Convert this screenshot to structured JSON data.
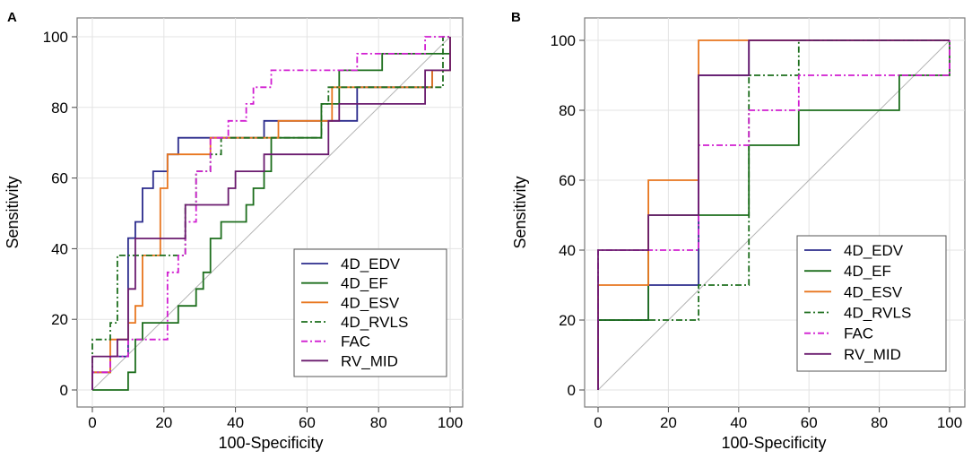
{
  "chart_data": [
    {
      "type": "line",
      "panel_label": "A",
      "xlabel": "100-Specificity",
      "ylabel": "Sensitivity",
      "xlim": [
        0,
        100
      ],
      "ylim": [
        0,
        100
      ],
      "xticks": [
        0,
        20,
        40,
        60,
        80,
        100
      ],
      "yticks": [
        0,
        20,
        40,
        60,
        80,
        100
      ],
      "grid": true,
      "legend_position": "bottom-right",
      "reference_line": {
        "x": [
          0,
          100
        ],
        "y": [
          0,
          100
        ],
        "color": "#b4b4b4"
      },
      "series": [
        {
          "name": "4D_EDV",
          "color": "#2b2b8c",
          "dash": "solid",
          "x": [
            0,
            0,
            5,
            5,
            10,
            10,
            12,
            12,
            14,
            14,
            17,
            17,
            21,
            21,
            24,
            24,
            38,
            38,
            48,
            48,
            74,
            74,
            80,
            80,
            95,
            95,
            100,
            100
          ],
          "y": [
            0,
            5,
            5,
            9.5,
            9.5,
            43,
            43,
            47.6,
            47.6,
            57.1,
            57.1,
            61.9,
            61.9,
            66.7,
            66.7,
            71.4,
            71.4,
            71.4,
            71.4,
            76.2,
            76.2,
            85.7,
            85.7,
            85.7,
            85.7,
            90.5,
            90.5,
            100
          ]
        },
        {
          "name": "4D_EF",
          "color": "#1d6e1d",
          "dash": "solid",
          "x": [
            0,
            0,
            10,
            10,
            12,
            12,
            14,
            14,
            24,
            24,
            29,
            29,
            31,
            31,
            33,
            33,
            36,
            36,
            43,
            43,
            45,
            45,
            48,
            48,
            50,
            50,
            64,
            64,
            69,
            69,
            81,
            81,
            100,
            100
          ],
          "y": [
            0,
            0,
            0,
            5,
            5,
            14.3,
            14.3,
            19,
            19,
            23.8,
            23.8,
            28.6,
            28.6,
            33.3,
            33.3,
            42.9,
            42.9,
            47.6,
            47.6,
            52.4,
            52.4,
            57.1,
            57.1,
            61.9,
            61.9,
            71.4,
            71.4,
            81,
            81,
            90.5,
            90.5,
            95.2,
            95.2,
            100
          ]
        },
        {
          "name": "4D_ESV",
          "color": "#e8761e",
          "dash": "solid",
          "x": [
            0,
            0,
            5,
            5,
            10,
            10,
            12,
            12,
            14,
            14,
            19,
            19,
            21,
            21,
            33,
            33,
            52,
            52,
            67,
            67,
            95,
            95,
            100,
            100
          ],
          "y": [
            0,
            5,
            5,
            14.3,
            14.3,
            19,
            19,
            23.8,
            23.8,
            38.1,
            38.1,
            57.1,
            57.1,
            66.7,
            66.7,
            71.4,
            71.4,
            76.2,
            76.2,
            85.7,
            85.7,
            90.5,
            90.5,
            100
          ]
        },
        {
          "name": "4D_RVLS",
          "color": "#1d6e1d",
          "dash": "dashdot",
          "x": [
            0,
            0,
            5,
            5,
            7,
            7,
            26,
            26,
            29,
            29,
            33,
            33,
            36,
            36,
            64,
            64,
            66,
            66,
            98,
            98,
            100
          ],
          "y": [
            0,
            14.3,
            14.3,
            19,
            19,
            38.1,
            38.1,
            52.4,
            52.4,
            61.9,
            61.9,
            66.7,
            66.7,
            71.4,
            71.4,
            81,
            81,
            85.7,
            85.7,
            100,
            100
          ]
        },
        {
          "name": "FAC",
          "color": "#d11ed1",
          "dash": "dashdot",
          "x": [
            0,
            0,
            5,
            5,
            10,
            10,
            21,
            21,
            24,
            24,
            26,
            26,
            29,
            29,
            33,
            33,
            38,
            38,
            43,
            43,
            45,
            45,
            50,
            50,
            57,
            57,
            74,
            74,
            86,
            86,
            93,
            93,
            100
          ],
          "y": [
            0,
            5,
            5,
            9.5,
            9.5,
            14.3,
            14.3,
            33.3,
            33.3,
            38.1,
            38.1,
            47.6,
            47.6,
            61.9,
            61.9,
            71.4,
            71.4,
            76.2,
            76.2,
            81,
            81,
            85.7,
            85.7,
            90.5,
            90.5,
            90.5,
            90.5,
            95.2,
            95.2,
            95.2,
            95.2,
            100,
            100
          ]
        },
        {
          "name": "RV_MID",
          "color": "#6a1b6e",
          "dash": "solid",
          "x": [
            0,
            0,
            7,
            7,
            10,
            10,
            12,
            12,
            26,
            26,
            38,
            38,
            40,
            40,
            48,
            48,
            57,
            57,
            66,
            66,
            69,
            69,
            93,
            93,
            100,
            100
          ],
          "y": [
            0,
            9.5,
            9.5,
            14.3,
            14.3,
            28.6,
            28.6,
            42.9,
            42.9,
            52.4,
            52.4,
            57.1,
            57.1,
            61.9,
            61.9,
            66.7,
            66.7,
            66.7,
            66.7,
            76.2,
            76.2,
            81,
            81,
            90.5,
            90.5,
            100
          ]
        }
      ]
    },
    {
      "type": "line",
      "panel_label": "B",
      "xlabel": "100-Specificity",
      "ylabel": "Sensitivity",
      "xlim": [
        0,
        100
      ],
      "ylim": [
        0,
        100
      ],
      "xticks": [
        0,
        20,
        40,
        60,
        80,
        100
      ],
      "yticks": [
        0,
        20,
        40,
        60,
        80,
        100
      ],
      "grid": true,
      "legend_position": "bottom-right",
      "reference_line": {
        "x": [
          0,
          100
        ],
        "y": [
          0,
          100
        ],
        "color": "#b4b4b4"
      },
      "series": [
        {
          "name": "4D_EDV",
          "color": "#2b2b8c",
          "dash": "solid",
          "x": [
            0,
            0,
            14.3,
            14.3,
            28.6,
            28.6,
            42.9,
            42.9,
            100
          ],
          "y": [
            0,
            20,
            20,
            30,
            30,
            90,
            90,
            100,
            100
          ]
        },
        {
          "name": "4D_EF",
          "color": "#1d6e1d",
          "dash": "solid",
          "x": [
            0,
            0,
            14.3,
            14.3,
            42.9,
            42.9,
            57.1,
            57.1,
            85.7,
            85.7,
            100,
            100
          ],
          "y": [
            0,
            20,
            20,
            50,
            50,
            70,
            70,
            80,
            80,
            90,
            90,
            100
          ]
        },
        {
          "name": "4D_ESV",
          "color": "#e8761e",
          "dash": "solid",
          "x": [
            0,
            0,
            14.3,
            14.3,
            28.6,
            28.6,
            100
          ],
          "y": [
            0,
            30,
            30,
            60,
            60,
            100,
            100
          ]
        },
        {
          "name": "4D_RVLS",
          "color": "#1d6e1d",
          "dash": "dashdot",
          "x": [
            0,
            0,
            28.6,
            28.6,
            42.9,
            42.9,
            57.1,
            57.1,
            100
          ],
          "y": [
            0,
            20,
            20,
            30,
            30,
            90,
            90,
            100,
            100
          ]
        },
        {
          "name": "FAC",
          "color": "#d11ed1",
          "dash": "dashdot",
          "x": [
            0,
            0,
            14.3,
            14.3,
            28.6,
            28.6,
            42.9,
            42.9,
            57.1,
            57.1,
            100,
            100
          ],
          "y": [
            0,
            40,
            40,
            40,
            40,
            70,
            70,
            80,
            80,
            90,
            90,
            100
          ]
        },
        {
          "name": "RV_MID",
          "color": "#6a1b6e",
          "dash": "solid",
          "x": [
            0,
            0,
            14.3,
            14.3,
            28.6,
            28.6,
            42.9,
            42.9,
            100
          ],
          "y": [
            0,
            40,
            40,
            50,
            50,
            90,
            90,
            100,
            100
          ]
        }
      ]
    }
  ]
}
